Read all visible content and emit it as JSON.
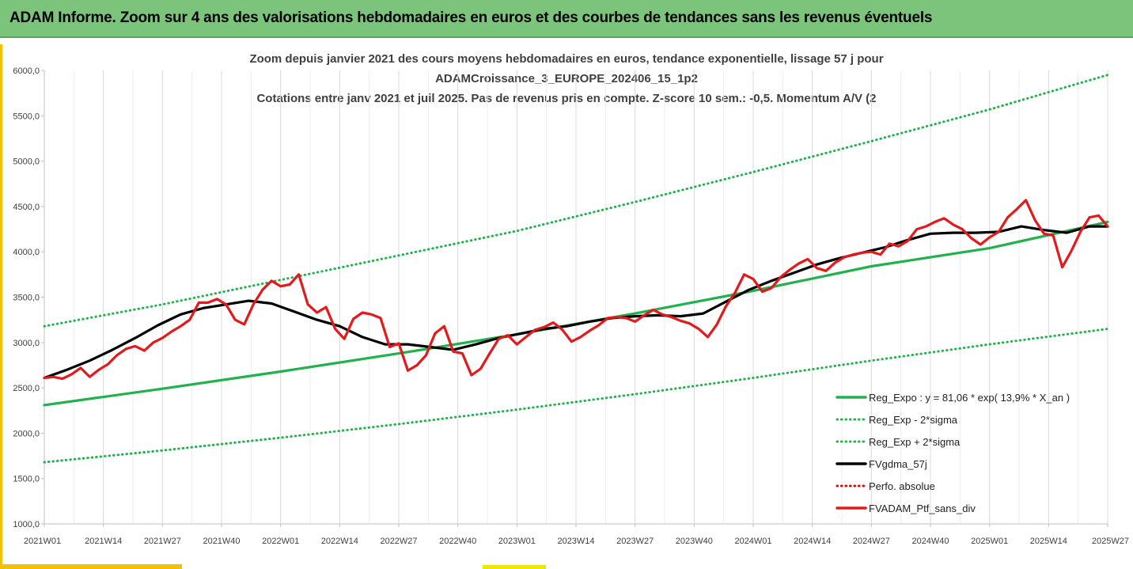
{
  "header": {
    "title": "ADAM Informe. Zoom sur 4 ans des valorisations hebdomadaires en euros et des courbes de tendances sans les revenus éventuels"
  },
  "chart_data": {
    "type": "line",
    "title_lines": [
      "Zoom depuis janvier 2021 des cours moyens hebdomadaires  en euros, tendance exponentielle, lissage 57 j pour",
      "ADAMCroissance_3_EUROPE_202406_15_1p2",
      "Cotations entre janv 2021 et juil 2025. Pas de revenus pris en compte. Z-score 10 sem.: -0,5. Momentum A/V (2"
    ],
    "ylim": [
      1000,
      6000
    ],
    "y_ticks": [
      1000,
      1500,
      2000,
      2500,
      3000,
      3500,
      4000,
      4500,
      5000,
      5500,
      6000
    ],
    "y_tick_labels": [
      "1000,0",
      "1500,0",
      "2000,0",
      "2500,0",
      "3000,0",
      "3500,0",
      "4000,0",
      "4500,0",
      "5000,0",
      "5500,0",
      "6000,0"
    ],
    "x_range": [
      0,
      234
    ],
    "x_ticks": [
      0,
      13,
      26,
      39,
      52,
      65,
      78,
      91,
      104,
      117,
      130,
      143,
      156,
      169,
      182,
      195,
      208,
      221,
      234
    ],
    "x_tick_labels": [
      "2021W01",
      "2021W14",
      "2021W27",
      "2021W40",
      "2022W01",
      "2022W14",
      "2022W27",
      "2022W40",
      "2023W01",
      "2023W14",
      "2023W27",
      "2023W40",
      "2024W01",
      "2024W14",
      "2024W27",
      "2024W40",
      "2025W01",
      "2025W14",
      "2025W27"
    ],
    "grid": "vertical",
    "legend_position": "bottom-right",
    "series": [
      {
        "name": "Reg_Expo : y = 81,06 * exp( 13,9% *  X_an )",
        "color": "#22b14c",
        "style": "solid",
        "x": [
          0,
          26,
          52,
          78,
          104,
          130,
          156,
          182,
          208,
          234
        ],
        "values": [
          2310,
          2490,
          2680,
          2880,
          3090,
          3320,
          3570,
          3840,
          4040,
          4330
        ]
      },
      {
        "name": "Reg_Exp - 2*sigma",
        "color": "#22b14c",
        "style": "dotted",
        "x": [
          0,
          26,
          52,
          78,
          104,
          130,
          156,
          182,
          208,
          234
        ],
        "values": [
          1680,
          1810,
          1950,
          2100,
          2260,
          2430,
          2610,
          2800,
          2980,
          3150
        ]
      },
      {
        "name": "Reg_Exp + 2*sigma",
        "color": "#22b14c",
        "style": "dotted",
        "x": [
          0,
          26,
          52,
          78,
          104,
          130,
          156,
          182,
          208,
          234
        ],
        "values": [
          3180,
          3420,
          3690,
          3960,
          4230,
          4550,
          4880,
          5220,
          5570,
          5950
        ]
      },
      {
        "name": "FVgdma_57j",
        "color": "#000000",
        "style": "solid",
        "x": [
          0,
          5,
          10,
          15,
          20,
          25,
          30,
          35,
          40,
          45,
          50,
          55,
          60,
          65,
          70,
          75,
          80,
          85,
          90,
          95,
          100,
          105,
          110,
          115,
          120,
          125,
          130,
          135,
          140,
          145,
          150,
          155,
          160,
          165,
          170,
          175,
          180,
          185,
          190,
          195,
          200,
          205,
          210,
          215,
          220,
          225,
          230,
          234
        ],
        "values": [
          2610,
          2700,
          2800,
          2920,
          3050,
          3190,
          3310,
          3380,
          3420,
          3460,
          3430,
          3340,
          3250,
          3180,
          3060,
          2980,
          2980,
          2950,
          2920,
          2980,
          3050,
          3100,
          3150,
          3180,
          3230,
          3270,
          3290,
          3300,
          3290,
          3320,
          3450,
          3580,
          3680,
          3770,
          3860,
          3930,
          3990,
          4050,
          4130,
          4200,
          4210,
          4210,
          4220,
          4280,
          4240,
          4210,
          4280,
          4280
        ]
      },
      {
        "name": "Perfo. absolue",
        "color": "#e00000",
        "style": "dotted",
        "x": [],
        "values": []
      },
      {
        "name": "FVADAM_Ptf_sans_div",
        "color": "#e31a1c",
        "style": "solid",
        "x": [
          0,
          2,
          4,
          6,
          8,
          10,
          12,
          14,
          16,
          18,
          20,
          22,
          24,
          26,
          28,
          30,
          32,
          34,
          36,
          38,
          40,
          42,
          44,
          46,
          48,
          50,
          52,
          54,
          56,
          58,
          60,
          62,
          64,
          66,
          68,
          70,
          72,
          74,
          76,
          78,
          80,
          82,
          84,
          86,
          88,
          90,
          92,
          94,
          96,
          98,
          100,
          102,
          104,
          106,
          108,
          110,
          112,
          114,
          116,
          118,
          120,
          122,
          124,
          126,
          128,
          130,
          132,
          134,
          136,
          138,
          140,
          142,
          144,
          146,
          148,
          150,
          152,
          154,
          156,
          158,
          160,
          162,
          164,
          166,
          168,
          170,
          172,
          174,
          176,
          178,
          180,
          182,
          184,
          186,
          188,
          190,
          192,
          194,
          196,
          198,
          200,
          202,
          204,
          206,
          208,
          210,
          212,
          214,
          216,
          218,
          220,
          222,
          224,
          226,
          228,
          230,
          232,
          234
        ],
        "values": [
          2610,
          2620,
          2600,
          2650,
          2720,
          2620,
          2700,
          2760,
          2860,
          2930,
          2960,
          2910,
          3000,
          3050,
          3120,
          3180,
          3250,
          3440,
          3440,
          3480,
          3420,
          3250,
          3200,
          3420,
          3580,
          3680,
          3620,
          3640,
          3750,
          3420,
          3330,
          3390,
          3150,
          3040,
          3260,
          3330,
          3310,
          3270,
          2950,
          2990,
          2690,
          2750,
          2860,
          3100,
          3180,
          2900,
          2880,
          2640,
          2710,
          2880,
          3040,
          3080,
          2980,
          3060,
          3140,
          3170,
          3220,
          3140,
          3010,
          3060,
          3130,
          3190,
          3270,
          3280,
          3270,
          3230,
          3300,
          3360,
          3310,
          3280,
          3240,
          3210,
          3150,
          3060,
          3200,
          3400,
          3550,
          3750,
          3700,
          3560,
          3600,
          3720,
          3800,
          3870,
          3920,
          3820,
          3790,
          3880,
          3940,
          3970,
          3990,
          4000,
          3970,
          4090,
          4060,
          4120,
          4250,
          4280,
          4330,
          4370,
          4300,
          4250,
          4150,
          4080,
          4160,
          4220,
          4380,
          4470,
          4570,
          4350,
          4200,
          4180,
          3830,
          4010,
          4220,
          4380,
          4400,
          4280
        ]
      }
    ]
  }
}
